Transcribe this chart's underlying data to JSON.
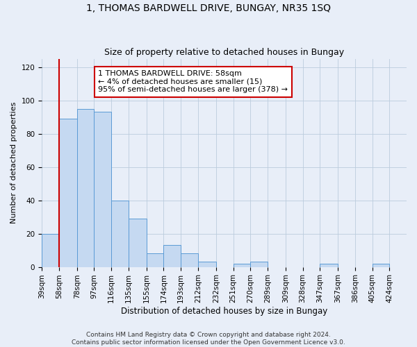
{
  "title": "1, THOMAS BARDWELL DRIVE, BUNGAY, NR35 1SQ",
  "subtitle": "Size of property relative to detached houses in Bungay",
  "xlabel": "Distribution of detached houses by size in Bungay",
  "ylabel": "Number of detached properties",
  "bins": [
    39,
    58,
    78,
    97,
    116,
    135,
    155,
    174,
    193,
    212,
    232,
    251,
    270,
    289,
    309,
    328,
    347,
    367,
    386,
    405,
    424
  ],
  "counts": [
    20,
    89,
    95,
    93,
    40,
    29,
    8,
    13,
    8,
    3,
    0,
    2,
    3,
    0,
    0,
    0,
    2,
    0,
    0,
    2,
    0
  ],
  "bar_color": "#c5d9f1",
  "bar_edge_color": "#5b9bd5",
  "ref_line_x": 58,
  "ref_line_color": "#cc0000",
  "annotation_title": "1 THOMAS BARDWELL DRIVE: 58sqm",
  "annotation_line1": "← 4% of detached houses are smaller (15)",
  "annotation_line2": "95% of semi-detached houses are larger (378) →",
  "annotation_box_color": "#ffffff",
  "annotation_box_edge": "#cc0000",
  "ylim": [
    0,
    125
  ],
  "yticks": [
    0,
    20,
    40,
    60,
    80,
    100,
    120
  ],
  "background_color": "#e8eef8",
  "footer": "Contains HM Land Registry data © Crown copyright and database right 2024.\nContains public sector information licensed under the Open Government Licence v3.0.",
  "title_fontsize": 10,
  "subtitle_fontsize": 9,
  "xlabel_fontsize": 8.5,
  "ylabel_fontsize": 8,
  "tick_fontsize": 7.5,
  "annotation_fontsize": 8,
  "footer_fontsize": 6.5
}
